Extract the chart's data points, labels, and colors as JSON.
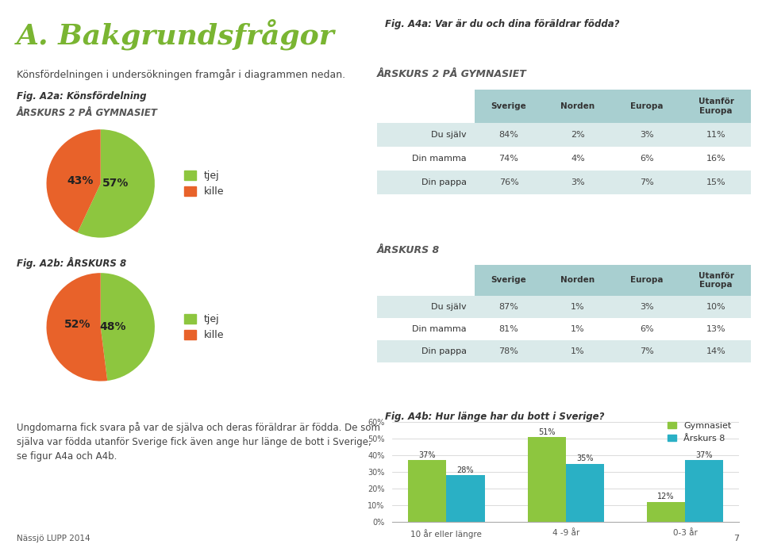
{
  "title": "A. Bakgrundsfrågor",
  "title_color": "#7ab532",
  "bg_color": "#ffffff",
  "subtitle_text": "Könsfördelningen i undersökningen framgår i diagrammen nedan.",
  "fig_a2a_label": "Fig. A2a: Könsfördelning",
  "fig_a2a_subtitle": "ÅRSKURS 2 PÅ GYMNASIET",
  "pie1_values": [
    57,
    43
  ],
  "pie1_labels": [
    "57%",
    "43%"
  ],
  "pie1_colors": [
    "#8dc63f",
    "#e8622a"
  ],
  "pie1_legend": [
    "tjej",
    "kille"
  ],
  "fig_a2b_label": "Fig. A2b: ÅRSKURS 8",
  "pie2_values": [
    48,
    52
  ],
  "pie2_labels": [
    "48%",
    "52%"
  ],
  "pie2_colors": [
    "#8dc63f",
    "#e8622a"
  ],
  "fig_a4a_label": "Fig. A4a: Var är du och dina föräldrar födda?",
  "table1_title": "ÅRSKURS 2 PÅ GYMNASIET",
  "table1_header": [
    "Sverige",
    "Norden",
    "Europa",
    "Utanför\nEuropa"
  ],
  "table1_rows": [
    [
      "Du själv",
      "84%",
      "2%",
      "3%",
      "11%"
    ],
    [
      "Din mamma",
      "74%",
      "4%",
      "6%",
      "16%"
    ],
    [
      "Din pappa",
      "76%",
      "3%",
      "7%",
      "15%"
    ]
  ],
  "table2_title": "ÅRSKURS 8",
  "table2_header": [
    "Sverige",
    "Norden",
    "Europa",
    "Utanför\nEuropa"
  ],
  "table2_rows": [
    [
      "Du själv",
      "87%",
      "1%",
      "3%",
      "10%"
    ],
    [
      "Din mamma",
      "81%",
      "1%",
      "6%",
      "13%"
    ],
    [
      "Din pappa",
      "78%",
      "1%",
      "7%",
      "14%"
    ]
  ],
  "table_header_color": "#a8cfd0",
  "table_row_alt_color": "#daeaea",
  "table_row_plain_color": "#ffffff",
  "fig_a4b_label": "Fig. A4b: Hur länge har du bott i Sverige?",
  "bar_categories": [
    "10 år eller längre",
    "4 -9 år",
    "0-3 år"
  ],
  "bar_gymnasiet": [
    37,
    51,
    12
  ],
  "bar_arskurs8": [
    28,
    35,
    37
  ],
  "bar_color_gymnasiet": "#8dc63f",
  "bar_color_arskurs8": "#2ab0c5",
  "bar_legend": [
    "Gymnasiet",
    "Årskurs 8"
  ],
  "footnote": "Nässjö LUPP 2014",
  "bottom_text": "Ungdomarna fick svara på var de själva och deras föräldrar är födda. De som\nsjälva var födda utanför Sverige fick även ange hur länge de bott i Sverige,\nse figur A4a och A4b."
}
